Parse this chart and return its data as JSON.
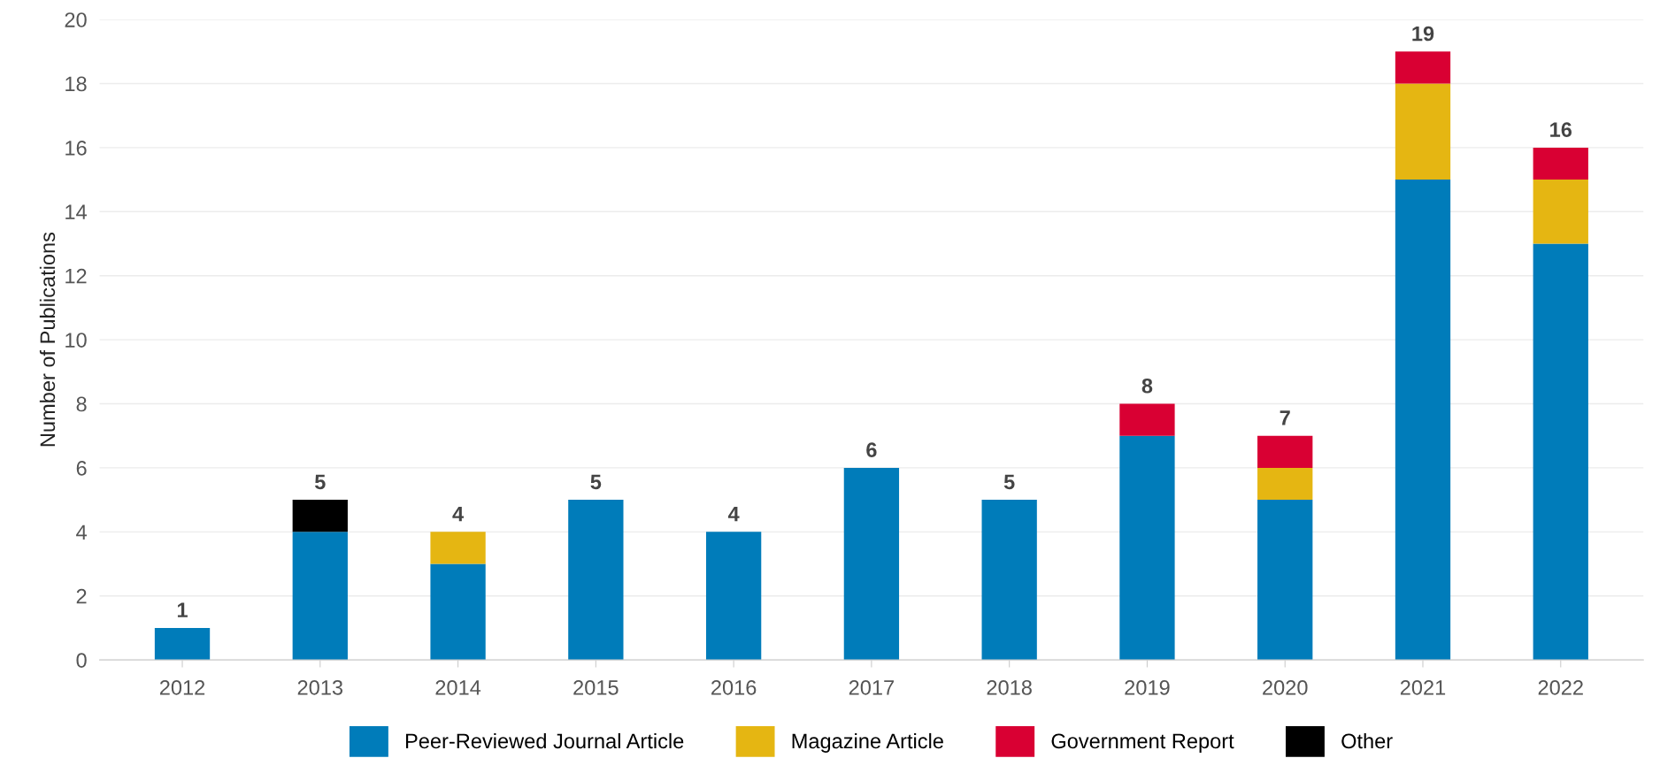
{
  "chart_data": {
    "type": "bar",
    "stacked": true,
    "ylabel": "Number of Publications",
    "categories": [
      "2012",
      "2013",
      "2014",
      "2015",
      "2016",
      "2017",
      "2018",
      "2019",
      "2020",
      "2021",
      "2022"
    ],
    "series": [
      {
        "name": "Peer-Reviewed Journal Article",
        "color": "#007cba",
        "values": [
          1,
          4,
          3,
          5,
          4,
          6,
          5,
          7,
          5,
          15,
          13
        ]
      },
      {
        "name": "Magazine Article",
        "color": "#e5b612",
        "values": [
          null,
          null,
          1,
          null,
          null,
          null,
          null,
          null,
          1,
          3,
          2
        ]
      },
      {
        "name": "Government Report",
        "color": "#d90033",
        "values": [
          null,
          null,
          null,
          null,
          null,
          null,
          null,
          1,
          1,
          1,
          1
        ]
      },
      {
        "name": "Other",
        "color": "#000000",
        "values": [
          null,
          1,
          null,
          null,
          null,
          null,
          null,
          null,
          null,
          null,
          null
        ]
      }
    ],
    "totals": [
      "1",
      "5",
      "4",
      "5",
      "4",
      "6",
      "5",
      "8",
      "7",
      "19",
      "16"
    ],
    "ylim": [
      0,
      20
    ],
    "yticks": [
      0,
      2,
      4,
      6,
      8,
      10,
      12,
      14,
      16,
      18,
      20
    ],
    "grid": "y",
    "legend": "bottom"
  }
}
